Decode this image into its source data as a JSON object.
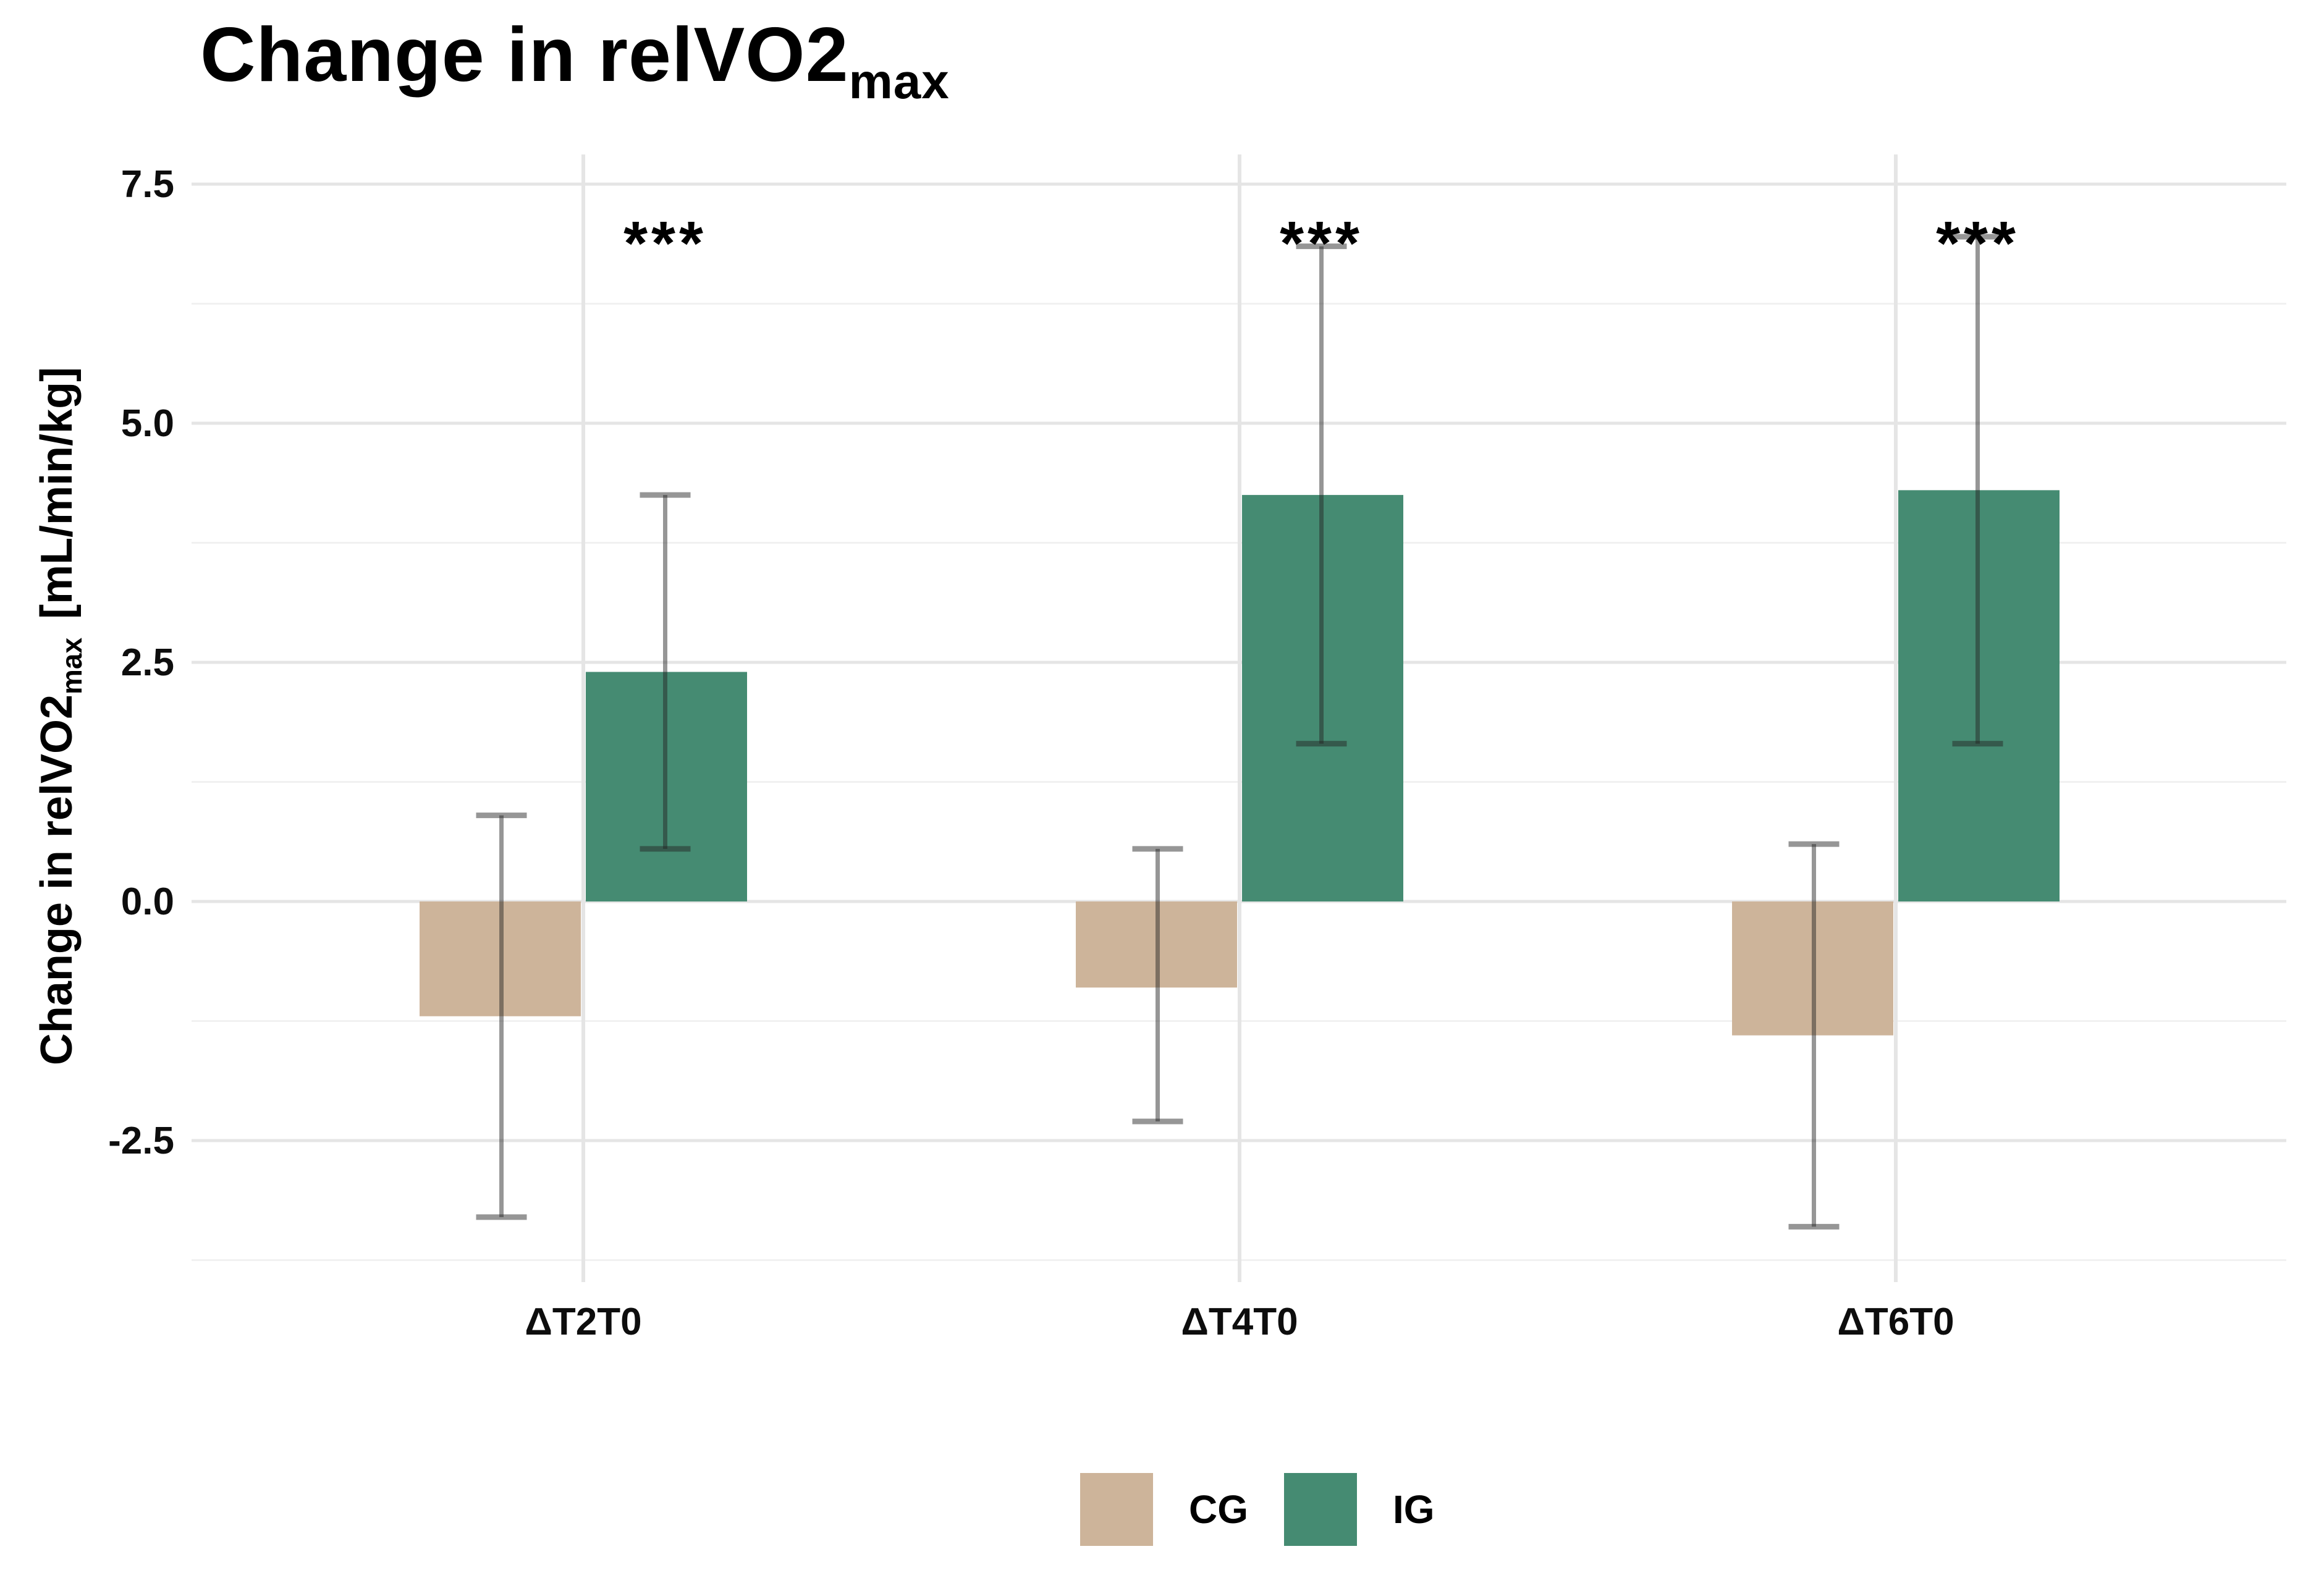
{
  "title": {
    "main": "Change in relVO2",
    "sub": "max"
  },
  "y_axis": {
    "title_main": "Change in relVO2",
    "title_sub": "max",
    "title_units": "[mL/min/kg]",
    "ticks": [
      {
        "label": "7.5",
        "value": 7.5
      },
      {
        "label": "5.0",
        "value": 5.0
      },
      {
        "label": "2.5",
        "value": 2.5
      },
      {
        "label": "0.0",
        "value": 0.0
      },
      {
        "label": "-2.5",
        "value": -2.5
      }
    ]
  },
  "x_axis": {
    "categories": [
      "ΔT2T0",
      "ΔT4T0",
      "ΔT6T0"
    ]
  },
  "chart_data": {
    "type": "bar",
    "title": "Change in relVO2max",
    "xlabel": "",
    "ylabel": "Change in relVO2max [mL/min/kg]",
    "categories": [
      "ΔT2T0",
      "ΔT4T0",
      "ΔT6T0"
    ],
    "series": [
      {
        "name": "CG",
        "color": "#CDB49A",
        "values": [
          -1.2,
          -0.9,
          -1.4
        ],
        "error_high": [
          0.9,
          0.55,
          0.6
        ],
        "error_low": [
          -3.3,
          -2.3,
          -3.4
        ]
      },
      {
        "name": "IG",
        "color": "#458B72",
        "values": [
          2.4,
          4.25,
          4.3
        ],
        "error_high": [
          4.25,
          6.85,
          6.95
        ],
        "error_low": [
          0.55,
          1.65,
          1.65
        ]
      }
    ],
    "significance": [
      {
        "category": "ΔT2T0",
        "series": "IG",
        "text": "***"
      },
      {
        "category": "ΔT4T0",
        "series": "IG",
        "text": "***"
      },
      {
        "category": "ΔT6T0",
        "series": "IG",
        "text": "***"
      }
    ],
    "error_bars": "symmetric (mean ± SD)",
    "y_ticks": [
      7.5,
      5.0,
      2.5,
      0.0,
      -2.5
    ],
    "ylim": [
      -4.2,
      7.9
    ],
    "grid": "horizontal major + minor, vertical at category centers",
    "legend_position": "bottom-center",
    "colors": {
      "grid_major": "#E5E5E5",
      "grid_minor": "#F1F1F1",
      "error_bar": "rgba(35,35,35,0.48)",
      "text": "#0d0d0d"
    }
  },
  "legend": {
    "items": [
      {
        "label": "CG",
        "color": "#CDB49A"
      },
      {
        "label": "IG",
        "color": "#458B72"
      }
    ]
  }
}
